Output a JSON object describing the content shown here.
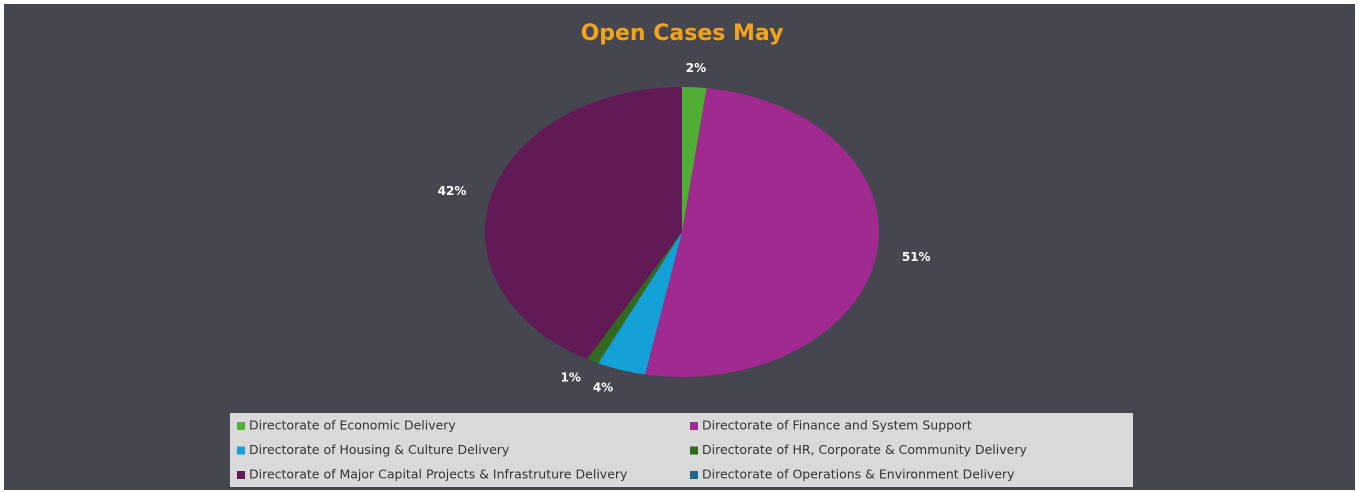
{
  "chart_data": {
    "type": "pie",
    "title": "Open Cases May",
    "categories": [
      "Directorate of Economic Delivery",
      "Directorate of Finance and System Support",
      "Directorate of Housing & Culture Delivery",
      "Directorate of HR, Corporate & Community Delivery",
      "Directorate of Major Capital Projects & Infrastruture Delivery",
      "Directorate of Operations & Environment Delivery"
    ],
    "values": [
      2,
      51,
      4,
      1,
      42,
      0
    ],
    "value_labels": [
      "2%",
      "51%",
      "4%",
      "1%",
      "42%",
      null
    ],
    "colors": [
      "#4fae33",
      "#a02a90",
      "#14a1d8",
      "#2f6a1f",
      "#611a56",
      "#1b6b88"
    ],
    "legend": "bottom"
  }
}
